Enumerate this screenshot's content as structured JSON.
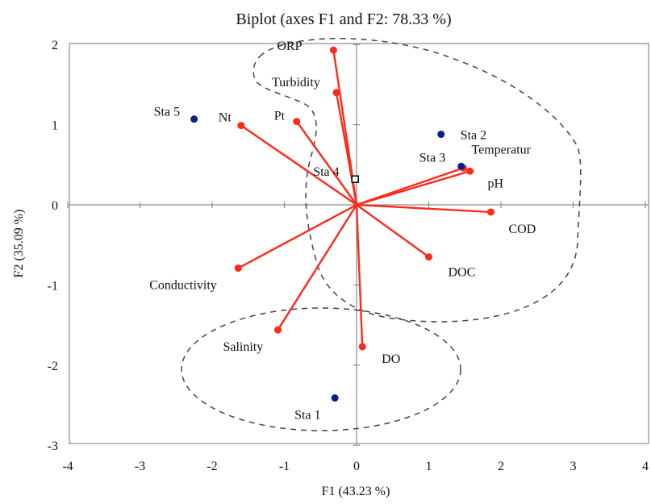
{
  "chart_data": {
    "type": "scatter",
    "title": "Biplot (axes F1 and F2: 78.33 %)",
    "xlabel": "F1 (43.23 %)",
    "ylabel": "F2 (35.09 %)",
    "xlim": [
      -4,
      4
    ],
    "ylim": [
      -3,
      2
    ],
    "x_ticks": [
      "-4",
      "-3",
      "-2",
      "-1",
      "0",
      "1",
      "2",
      "3",
      "4"
    ],
    "y_ticks": [
      "2",
      "1",
      "0",
      "-1",
      "-2",
      "-3"
    ],
    "grid": false,
    "colors": {
      "variables": "#ff2a1a",
      "observations": "#0b1f8a",
      "origin_marker": "#000000"
    },
    "series": [
      {
        "kind": "variables",
        "points": [
          {
            "label": "ORP",
            "x": -0.32,
            "y": 1.93
          },
          {
            "label": "Turbidity",
            "x": -0.28,
            "y": 1.4
          },
          {
            "label": "Pt",
            "x": -0.83,
            "y": 1.04
          },
          {
            "label": "Nt",
            "x": -1.6,
            "y": 0.99
          },
          {
            "label": "Temperatur",
            "x": 1.48,
            "y": 0.46
          },
          {
            "label": "pH",
            "x": 1.57,
            "y": 0.42
          },
          {
            "label": "COD",
            "x": 1.86,
            "y": -0.09
          },
          {
            "label": "DOC",
            "x": 1.0,
            "y": -0.65
          },
          {
            "label": "Conductivity",
            "x": -1.64,
            "y": -0.79
          },
          {
            "label": "Salinity",
            "x": -1.09,
            "y": -1.56
          },
          {
            "label": "DO",
            "x": 0.08,
            "y": -1.77
          }
        ]
      },
      {
        "kind": "observations",
        "points": [
          {
            "label": "Sta 1",
            "x": -0.3,
            "y": -2.41
          },
          {
            "label": "Sta 2",
            "x": 1.17,
            "y": 0.88
          },
          {
            "label": "Sta 3",
            "x": 1.45,
            "y": 0.48
          },
          {
            "label": "Sta 4",
            "x": -0.02,
            "y": 0.32
          },
          {
            "label": "Sta 5",
            "x": -2.25,
            "y": 1.07
          }
        ]
      }
    ],
    "annotations": [
      "dashed outline around Sta 2, Sta 3, Sta 4 and their vectors",
      "dashed ellipse around Sta 1, Salinity and DO"
    ]
  }
}
